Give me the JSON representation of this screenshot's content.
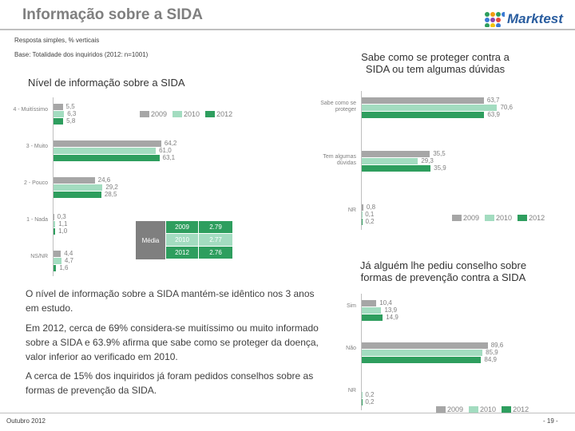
{
  "header": {
    "title": "Informação sobre a SIDA",
    "response": "Resposta simples, % verticais",
    "base": "Base: Totalidade dos inquiridos (2012: n=1001)",
    "logo": "Marktest"
  },
  "chart_data": [
    {
      "type": "hbar",
      "title": "Nível de informação sobre a SIDA",
      "categories": [
        "4 - Muitíssimo",
        "3 - Muito",
        "2 - Pouco",
        "1 - Nada",
        "NS/NR"
      ],
      "series": [
        {
          "name": "2009",
          "color": "#a6a6a6",
          "values": [
            5.5,
            64.2,
            24.6,
            0.3,
            4.4
          ],
          "value_labels": [
            "5,5",
            "64,2",
            "24,6",
            "0,3",
            "4,4"
          ]
        },
        {
          "name": "2010",
          "color": "#a3dcc0",
          "values": [
            6.3,
            61.0,
            29.2,
            1.1,
            4.7
          ],
          "value_labels": [
            "6,3",
            "61,0",
            "29,2",
            "1,1",
            "4,7"
          ]
        },
        {
          "name": "2012",
          "color": "#2e9e5e",
          "values": [
            5.8,
            63.1,
            28.5,
            1.0,
            1.6
          ],
          "value_labels": [
            "5,8",
            "63,1",
            "28,5",
            "1,0",
            "1,6"
          ]
        }
      ]
    },
    {
      "type": "hbar",
      "title": "Sabe como se proteger contra a SIDA ou tem algumas dúvidas",
      "categories": [
        "Sabe como se proteger",
        "Tem algumas dúvidas",
        "NR"
      ],
      "series": [
        {
          "name": "2009",
          "color": "#a6a6a6",
          "values": [
            63.7,
            35.5,
            0.8
          ],
          "value_labels": [
            "63,7",
            "35,5",
            "0,8"
          ]
        },
        {
          "name": "2010",
          "color": "#a3dcc0",
          "values": [
            70.6,
            29.3,
            0.1
          ],
          "value_labels": [
            "70,6",
            "29,3",
            "0,1"
          ]
        },
        {
          "name": "2012",
          "color": "#2e9e5e",
          "values": [
            63.9,
            35.9,
            0.2
          ],
          "value_labels": [
            "63,9",
            "35,9",
            "0,2"
          ]
        }
      ]
    },
    {
      "type": "hbar",
      "title": "Já alguém lhe pediu conselho sobre formas de prevenção contra a SIDA",
      "categories": [
        "Sim",
        "Não",
        "NR"
      ],
      "series": [
        {
          "name": "2009",
          "color": "#a6a6a6",
          "values": [
            10.4,
            89.6,
            null
          ],
          "value_labels": [
            "10,4",
            "89,6",
            null
          ]
        },
        {
          "name": "2010",
          "color": "#a3dcc0",
          "values": [
            13.9,
            85.9,
            0.2
          ],
          "value_labels": [
            "13,9",
            "85,9",
            "0,2"
          ]
        },
        {
          "name": "2012",
          "color": "#2e9e5e",
          "values": [
            14.9,
            84.9,
            0.2
          ],
          "value_labels": [
            "14,9",
            "84,9",
            "0,2"
          ]
        }
      ]
    }
  ],
  "media_table": {
    "label": "Média",
    "rows": [
      [
        "2009",
        "2.79"
      ],
      [
        "2010",
        "2.77"
      ],
      [
        "2012",
        "2.76"
      ]
    ]
  },
  "paragraphs": [
    "O nível de informação sobre a SIDA mantém-se idêntico nos 3 anos em estudo.",
    "Em 2012, cerca de 69% considera-se muitíssimo ou muito informado sobre a SIDA e 63.9% afirma que sabe como se proteger da doença, valor inferior ao verificado em 2010.",
    "A cerca de 15% dos inquiridos já foram pedidos conselhos sobre as formas de prevenção da SIDA."
  ],
  "footer": {
    "date": "Outubro 2012",
    "page": "- 19 -"
  }
}
